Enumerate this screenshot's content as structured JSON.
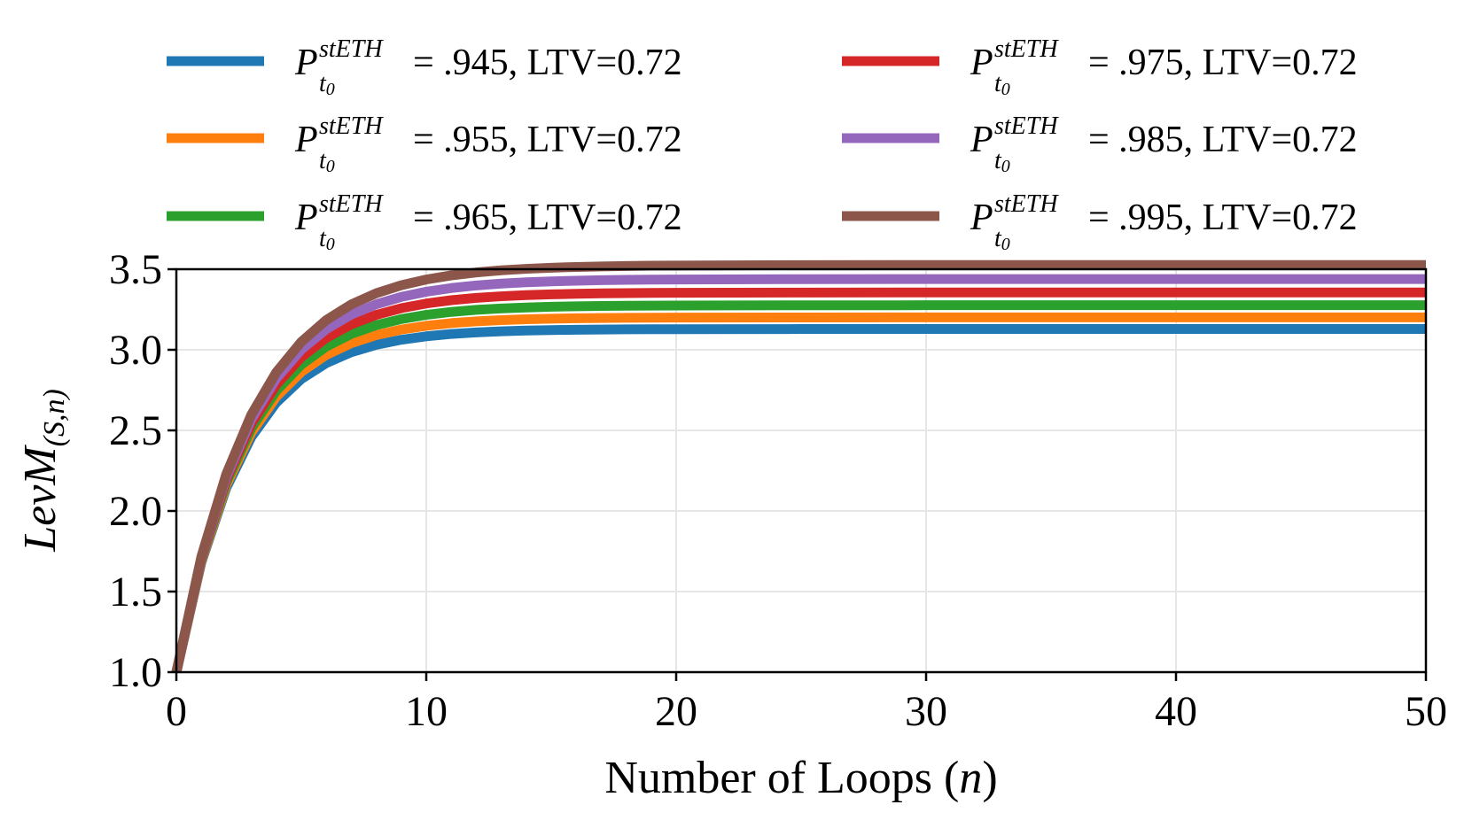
{
  "chart_data": {
    "type": "line",
    "xlabel_text": "Number of Loops (",
    "xlabel_var": "n",
    "xlabel_close": ")",
    "ylabel_main": "LevM",
    "ylabel_sub": "(S,n)",
    "xlim": [
      0,
      50
    ],
    "ylim": [
      1.0,
      3.5
    ],
    "xticks": [
      0,
      10,
      20,
      30,
      40,
      50
    ],
    "xtick_labels": [
      "0",
      "10",
      "20",
      "30",
      "40",
      "50"
    ],
    "yticks": [
      1.0,
      1.5,
      2.0,
      2.5,
      3.0,
      3.5
    ],
    "ytick_labels": [
      "1.0",
      "1.5",
      "2.0",
      "2.5",
      "3.0",
      "3.5"
    ],
    "grid": true,
    "legend_position": "top",
    "legend_symbol": "P",
    "legend_superscript": "stETH",
    "legend_subscript": "t",
    "legend_subscript_index": "0",
    "series": [
      {
        "name": "P_t0^stETH = .945, LTV=0.72",
        "price_label": "= .945, LTV=0.72",
        "color": "#1f77b4",
        "price": 0.945,
        "ltv": 0.72
      },
      {
        "name": "P_t0^stETH = .955, LTV=0.72",
        "price_label": "= .955, LTV=0.72",
        "color": "#ff7f0e",
        "price": 0.955,
        "ltv": 0.72
      },
      {
        "name": "P_t0^stETH = .965, LTV=0.72",
        "price_label": "= .965, LTV=0.72",
        "color": "#2ca02c",
        "price": 0.965,
        "ltv": 0.72
      },
      {
        "name": "P_t0^stETH = .975, LTV=0.72",
        "price_label": "= .975, LTV=0.72",
        "color": "#d62728",
        "price": 0.975,
        "ltv": 0.72
      },
      {
        "name": "P_t0^stETH = .985, LTV=0.72",
        "price_label": "= .985, LTV=0.72",
        "color": "#9467bd",
        "price": 0.985,
        "ltv": 0.72
      },
      {
        "name": "P_t0^stETH = .995, LTV=0.72",
        "price_label": "= .995, LTV=0.72",
        "color": "#8c564b",
        "price": 0.995,
        "ltv": 0.72
      }
    ],
    "x_points": [
      0,
      1,
      2,
      3,
      4,
      5,
      6,
      7,
      8,
      9,
      10,
      11,
      12,
      13,
      14,
      15,
      16,
      17,
      18,
      19,
      20,
      25,
      30,
      35,
      40,
      45,
      50
    ]
  }
}
